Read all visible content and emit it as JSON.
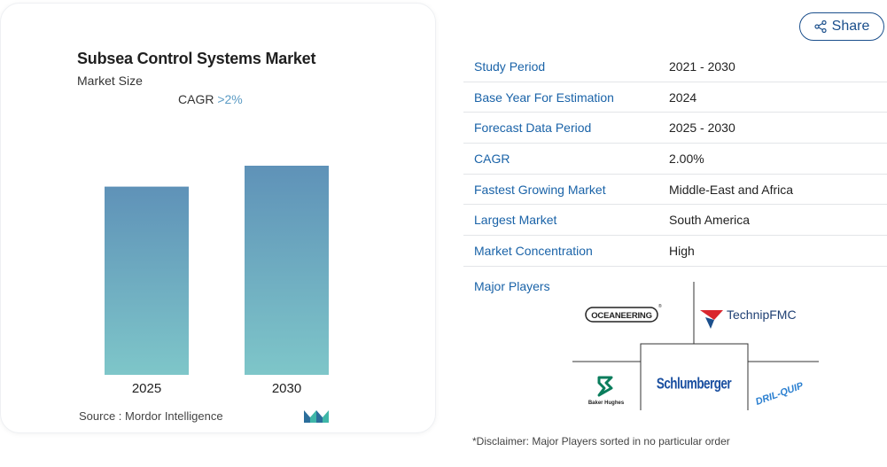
{
  "card": {
    "title": "Subsea Control Systems Market",
    "subtitle": "Market Size",
    "cagr_label": "CAGR ",
    "cagr_value": ">2%",
    "source": "Source :  Mordor Intelligence",
    "logo_icon": "mordor-intelligence-logo-icon"
  },
  "chart_data": {
    "type": "bar",
    "categories": [
      "2025",
      "2030"
    ],
    "values": [
      0.9,
      1.0
    ],
    "colors": {
      "top": "#5f92b8",
      "bottom": "#7ec6c9"
    }
  },
  "share": {
    "label": "Share",
    "icon": "share-icon"
  },
  "info": {
    "rows": [
      {
        "key": "Study Period",
        "value": "2021 - 2030"
      },
      {
        "key": "Base Year For Estimation",
        "value": "2024"
      },
      {
        "key": "Forecast Data Period",
        "value": "2025 - 2030"
      },
      {
        "key": "CAGR",
        "value": "2.00%"
      },
      {
        "key": "Fastest Growing Market",
        "value": "Middle-East and Africa"
      },
      {
        "key": "Largest Market",
        "value": "South America"
      },
      {
        "key": "Market Concentration",
        "value": "High"
      }
    ],
    "major_players_label": "Major Players",
    "players": [
      "OCEANEERING",
      "TechnipFMC",
      "Baker Hughes",
      "Schlumberger",
      "DRIL-QUIP"
    ],
    "disclaimer": "*Disclaimer: Major Players sorted in no particular order"
  },
  "colors": {
    "accent_blue": "#1a63a8",
    "share_border": "#1b4f8c",
    "cagr_highlight": "#5b9bc4"
  }
}
